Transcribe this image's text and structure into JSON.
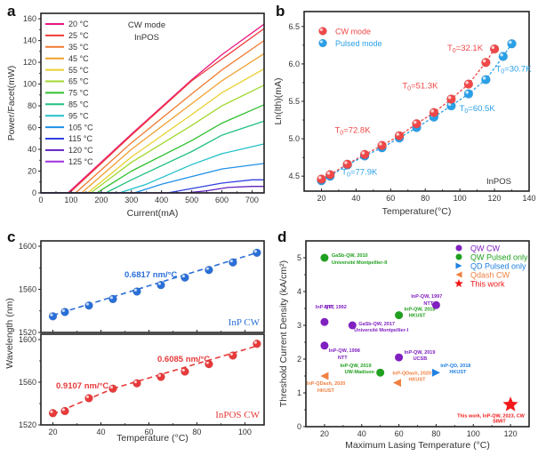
{
  "chart_data": [
    {
      "panel": "a",
      "type": "line",
      "title": "",
      "annotation": [
        "CW mode",
        "InPOS"
      ],
      "xlabel": "Current(mA)",
      "ylabel": "Power/Facet(mW)",
      "xlim": [
        0,
        740
      ],
      "ylim": [
        0,
        165
      ],
      "xticks": [
        0,
        100,
        200,
        300,
        400,
        500,
        600,
        700
      ],
      "yticks": [
        0,
        20,
        40,
        60,
        80,
        100,
        120,
        140,
        160
      ],
      "legend_position": "top-left",
      "series": [
        {
          "name": "20 °C",
          "color": "#e8177f",
          "threshold": 90,
          "points": [
            [
              90,
              0
            ],
            [
              300,
              54
            ],
            [
              500,
              104
            ],
            [
              600,
              127
            ],
            [
              740,
              155
            ]
          ]
        },
        {
          "name": "25 °C",
          "color": "#f03a3a",
          "threshold": 95,
          "points": [
            [
              95,
              0
            ],
            [
              300,
              53
            ],
            [
              500,
              103
            ],
            [
              600,
              123
            ],
            [
              740,
              151
            ]
          ]
        },
        {
          "name": "35 °C",
          "color": "#f07a30",
          "threshold": 115,
          "points": [
            [
              115,
              0
            ],
            [
              300,
              46
            ],
            [
              500,
              91
            ],
            [
              600,
              113
            ],
            [
              740,
              140
            ]
          ]
        },
        {
          "name": "45 °C",
          "color": "#f0a030",
          "threshold": 135,
          "points": [
            [
              135,
              0
            ],
            [
              300,
              40
            ],
            [
              500,
              82
            ],
            [
              600,
              103
            ],
            [
              740,
              128
            ]
          ]
        },
        {
          "name": "55 °C",
          "color": "#e8d030",
          "threshold": 155,
          "points": [
            [
              155,
              0
            ],
            [
              300,
              33
            ],
            [
              500,
              72
            ],
            [
              600,
              92
            ],
            [
              740,
              114
            ]
          ]
        },
        {
          "name": "65 °C",
          "color": "#a0d830",
          "threshold": 165,
          "points": [
            [
              165,
              0
            ],
            [
              300,
              28
            ],
            [
              500,
              62
            ],
            [
              600,
              80
            ],
            [
              740,
              99
            ]
          ]
        },
        {
          "name": "75 °C",
          "color": "#30c030",
          "threshold": 185,
          "points": [
            [
              185,
              0
            ],
            [
              300,
              20
            ],
            [
              500,
              48
            ],
            [
              600,
              64
            ],
            [
              740,
              81
            ]
          ]
        },
        {
          "name": "85 °C",
          "color": "#20c080",
          "threshold": 215,
          "points": [
            [
              215,
              0
            ],
            [
              300,
              12
            ],
            [
              500,
              38
            ],
            [
              600,
              53
            ],
            [
              740,
              66
            ]
          ]
        },
        {
          "name": "95 °C",
          "color": "#20c0c8",
          "threshold": 260,
          "points": [
            [
              260,
              0
            ],
            [
              350,
              8
            ],
            [
              500,
              26
            ],
            [
              600,
              36
            ],
            [
              740,
              45
            ]
          ]
        },
        {
          "name": "105 °C",
          "color": "#2090e8",
          "threshold": 310,
          "points": [
            [
              310,
              0
            ],
            [
              400,
              8
            ],
            [
              500,
              15
            ],
            [
              600,
              22
            ],
            [
              740,
              27
            ]
          ]
        },
        {
          "name": "115 °C",
          "color": "#3040e0",
          "threshold": 420,
          "points": [
            [
              420,
              0
            ],
            [
              500,
              4
            ],
            [
              600,
              9
            ],
            [
              700,
              12
            ],
            [
              740,
              12
            ]
          ]
        },
        {
          "name": "120 °C",
          "color": "#6020c0",
          "threshold": 480,
          "points": [
            [
              480,
              0
            ],
            [
              550,
              2
            ],
            [
              620,
              5
            ],
            [
              700,
              6
            ],
            [
              740,
              6
            ]
          ]
        },
        {
          "name": "125 °C",
          "color": "#a030e0",
          "threshold": 740,
          "points": [
            [
              0,
              0
            ],
            [
              740,
              0
            ]
          ]
        }
      ]
    },
    {
      "panel": "b",
      "type": "scatter",
      "xlabel": "Temperature(°C)",
      "ylabel": "Ln(I_th)(mA)",
      "xlim": [
        10,
        140
      ],
      "ylim": [
        4.3,
        6.7
      ],
      "xticks": [
        20,
        40,
        60,
        80,
        100,
        120,
        140
      ],
      "yticks": [
        4.5,
        5.0,
        5.5,
        6.0,
        6.5
      ],
      "legend_position": "top-left",
      "corner_label": "InPOS",
      "series": [
        {
          "name": "CW mode",
          "color": "#f04848",
          "x": [
            20,
            25,
            35,
            45,
            55,
            65,
            75,
            85,
            95,
            105,
            115,
            120
          ],
          "y": [
            4.46,
            4.52,
            4.66,
            4.79,
            4.91,
            5.04,
            5.2,
            5.35,
            5.53,
            5.73,
            6.02,
            6.2
          ]
        },
        {
          "name": "Pulsed mode",
          "color": "#2aa0e8",
          "x": [
            20,
            25,
            35,
            45,
            55,
            65,
            75,
            85,
            95,
            105,
            115,
            125,
            130
          ],
          "y": [
            4.44,
            4.5,
            4.65,
            4.77,
            4.88,
            5.01,
            5.15,
            5.29,
            5.44,
            5.6,
            5.79,
            6.1,
            6.27
          ]
        }
      ],
      "annotations": [
        {
          "text": "T0=72.8K",
          "color": "#f04848",
          "x": 38,
          "y": 5.08
        },
        {
          "text": "T0=51.3K",
          "color": "#f04848",
          "x": 77,
          "y": 5.67
        },
        {
          "text": "T0=32.1K",
          "color": "#f04848",
          "x": 103,
          "y": 6.18
        },
        {
          "text": "T0=77.9K",
          "color": "#2aa0e8",
          "x": 42,
          "y": 4.52
        },
        {
          "text": "T0=60.5K",
          "color": "#2aa0e8",
          "x": 110,
          "y": 5.37
        },
        {
          "text": "T0=30.7K",
          "color": "#2aa0e8",
          "x": 131,
          "y": 5.9
        }
      ]
    },
    {
      "panel": "c",
      "type": "scatter",
      "xlabel": "Temperature (°C)",
      "ylabel": "Wavelength (nm)",
      "xlim": [
        15,
        108
      ],
      "xticks": [
        20,
        40,
        60,
        80,
        100
      ],
      "subplots": [
        {
          "name": "InP CW",
          "color": "#2a6fd8",
          "ylim": [
            1520,
            1605
          ],
          "yticks": [
            1520,
            1560,
            1600
          ],
          "x": [
            20,
            25,
            35,
            45,
            55,
            65,
            75,
            85,
            95,
            105
          ],
          "y": [
            1535,
            1539,
            1545,
            1551,
            1558,
            1564,
            1571,
            1578,
            1585,
            1594
          ],
          "fits": [
            {
              "label": "0.6817 nm/°C",
              "x0": 20,
              "x1": 105,
              "y0": 1536,
              "y1": 1594
            }
          ]
        },
        {
          "name": "InPOS CW",
          "color": "#e83a3a",
          "ylim": [
            1520,
            1605
          ],
          "yticks": [
            1520,
            1560,
            1600
          ],
          "x": [
            20,
            25,
            35,
            45,
            55,
            65,
            75,
            85,
            95,
            105
          ],
          "y": [
            1531,
            1533,
            1545,
            1554,
            1559,
            1565,
            1570,
            1577,
            1585,
            1596
          ],
          "fits": [
            {
              "label": "0.9107 nm/°C",
              "x0": 20,
              "x1": 45,
              "y0": 1530,
              "y1": 1554
            },
            {
              "label": "0.6085 nm/°C",
              "x0": 45,
              "x1": 105,
              "y0": 1554,
              "y1": 1594
            }
          ]
        }
      ]
    },
    {
      "panel": "d",
      "type": "scatter",
      "xlabel": "Maximum Lasing Temperature (°C)",
      "ylabel": "Threshold Current Density (kA/cm²)",
      "xlim": [
        10,
        130
      ],
      "ylim": [
        0,
        5.5
      ],
      "xticks": [
        20,
        40,
        60,
        80,
        100,
        120
      ],
      "yticks": [
        0,
        1,
        2,
        3,
        4,
        5
      ],
      "legend_position": "top-right",
      "legend": [
        {
          "name": "QW CW",
          "color": "#8020c0",
          "marker": "circle"
        },
        {
          "name": "QW Pulsed only",
          "color": "#20a020",
          "marker": "circle"
        },
        {
          "name": "QD Pulsed only",
          "color": "#2080e0",
          "marker": "triangle-right"
        },
        {
          "name": "Qdash CW",
          "color": "#f08040",
          "marker": "triangle-left"
        },
        {
          "name": "This work",
          "color": "#f01818",
          "marker": "star"
        }
      ],
      "points": [
        {
          "group": "QW Pulsed only",
          "x": 20,
          "y": 5.0,
          "label": [
            "GaSb-QW, 2010",
            "Université Montpellier-II"
          ]
        },
        {
          "group": "QW CW",
          "x": 20,
          "y": 3.1,
          "label": [
            "InP-QW, 1992",
            "NTT"
          ]
        },
        {
          "group": "QW CW",
          "x": 35,
          "y": 3.0,
          "label": [
            "GaSb-QW, 2017",
            "Université Montpellier-I"
          ]
        },
        {
          "group": "QW Pulsed only",
          "x": 60,
          "y": 3.3,
          "label": [
            "InP-QW, 2018",
            "HKUST"
          ]
        },
        {
          "group": "QW CW",
          "x": 80,
          "y": 3.6,
          "label": [
            "InP-QW, 1997",
            "NTT"
          ]
        },
        {
          "group": "QW CW",
          "x": 20,
          "y": 2.4,
          "label": [
            "InP-QW, 1998",
            "NTT"
          ]
        },
        {
          "group": "QW CW",
          "x": 60,
          "y": 2.05,
          "label": [
            "InP-QW, 2019",
            "UCSB"
          ]
        },
        {
          "group": "QW Pulsed only",
          "x": 50,
          "y": 1.6,
          "label": [
            "InP-QW, 2019",
            "UW-Madison"
          ]
        },
        {
          "group": "QD Pulsed only",
          "x": 80,
          "y": 1.6,
          "label": [
            "InP-QD, 2018",
            "HKUST"
          ]
        },
        {
          "group": "Qdash CW",
          "x": 20,
          "y": 1.5,
          "label": [
            "InP-QDash, 2020",
            "HKUST"
          ]
        },
        {
          "group": "Qdash CW",
          "x": 59,
          "y": 1.3,
          "label": [
            "InP-QDash, 2020",
            "HKUST"
          ]
        },
        {
          "group": "This work",
          "x": 120,
          "y": 0.65,
          "label": [
            "This work, InP-QW, 2023, CW",
            "SIMIT"
          ]
        }
      ]
    }
  ]
}
